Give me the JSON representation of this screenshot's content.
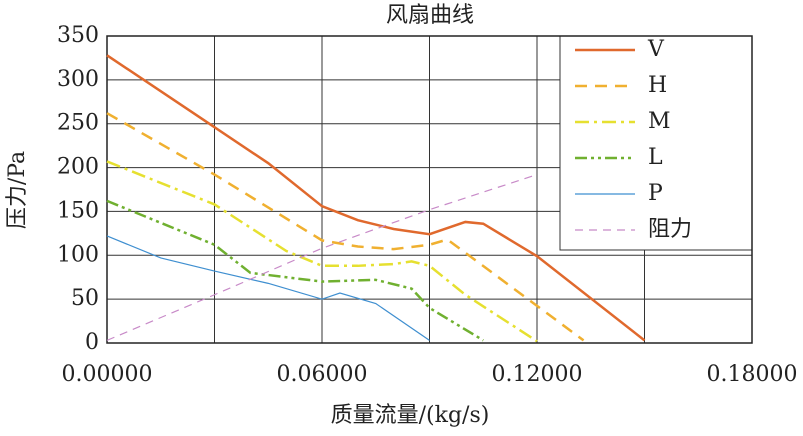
{
  "chart_data": {
    "type": "line",
    "title": "风扇曲线",
    "x_label": "质量流量/(kg/s)",
    "y_label": "压力/Pa",
    "xlim": [
      0,
      0.18
    ],
    "ylim": [
      0,
      350
    ],
    "xticks": [
      {
        "value": 0,
        "label": "0.00000"
      },
      {
        "value": 0.06,
        "label": "0.06000"
      },
      {
        "value": 0.12,
        "label": "0.12000"
      },
      {
        "value": 0.18,
        "label": "0.18000"
      }
    ],
    "x_minor_grid": [
      0.03,
      0.09,
      0.15
    ],
    "yticks": [
      0,
      50,
      100,
      150,
      200,
      250,
      300,
      350
    ],
    "grid": true,
    "legend": "upper right",
    "series": [
      {
        "name": "V",
        "color": "#e0692d",
        "dash": "solid",
        "width": 2.5,
        "x": [
          0,
          0.03,
          0.045,
          0.06,
          0.07,
          0.08,
          0.09,
          0.1,
          0.105,
          0.12,
          0.15
        ],
        "values": [
          328,
          246,
          205,
          156,
          140,
          130,
          124,
          138,
          136,
          99,
          3
        ]
      },
      {
        "name": "H",
        "color": "#f0b030",
        "dash": "12 8",
        "width": 2.5,
        "x": [
          0,
          0.03,
          0.06,
          0.07,
          0.08,
          0.09,
          0.095,
          0.133
        ],
        "values": [
          262,
          192,
          117,
          110,
          107,
          112,
          118,
          3
        ]
      },
      {
        "name": "M",
        "color": "#e6e030",
        "dash": "14 5 3 5",
        "width": 2.5,
        "x": [
          0,
          0.03,
          0.05,
          0.06,
          0.07,
          0.08,
          0.085,
          0.09,
          0.1,
          0.12
        ],
        "values": [
          207,
          158,
          105,
          88,
          88,
          90,
          93,
          88,
          55,
          2
        ]
      },
      {
        "name": "L",
        "color": "#70b030",
        "dash": "12 4 3 4 3 4",
        "width": 2.5,
        "x": [
          0,
          0.03,
          0.04,
          0.06,
          0.075,
          0.085,
          0.09,
          0.105
        ],
        "values": [
          162,
          112,
          80,
          70,
          72,
          62,
          40,
          3
        ]
      },
      {
        "name": "P",
        "color": "#3f8fd0",
        "dash": "solid",
        "width": 1.2,
        "x": [
          0,
          0.015,
          0.03,
          0.045,
          0.06,
          0.065,
          0.075,
          0.09
        ],
        "values": [
          122,
          97,
          82,
          68,
          50,
          57,
          45,
          3
        ]
      },
      {
        "name": "阻力",
        "color": "#c88ac8",
        "dash": "8 6",
        "width": 1.2,
        "x": [
          0,
          0.03,
          0.06,
          0.09,
          0.12
        ],
        "values": [
          3,
          55,
          108,
          152,
          192
        ]
      }
    ]
  }
}
